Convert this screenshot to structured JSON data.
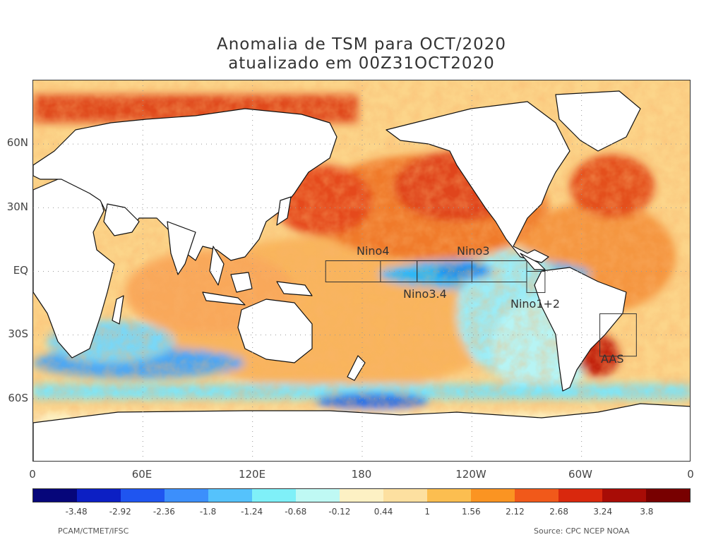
{
  "title": {
    "line1": "Anomalia de TSM para OCT/2020",
    "line2": "atualizado em 00Z31OCT2020"
  },
  "map": {
    "type": "heatmap",
    "projection": "equirectangular",
    "lon_range": [
      0,
      360
    ],
    "lat_range": [
      -90,
      90
    ],
    "lat_labels": [
      "60N",
      "30N",
      "EQ",
      "30S",
      "60S"
    ],
    "lon_labels": [
      "0",
      "60E",
      "120E",
      "180",
      "120W",
      "60W",
      "0"
    ],
    "regions": [
      {
        "name": "Nino4",
        "lon": [
          160,
          210
        ],
        "lat": [
          -5,
          5
        ]
      },
      {
        "name": "Nino3.4",
        "lon": [
          190,
          240
        ],
        "lat": [
          -5,
          5
        ]
      },
      {
        "name": "Nino3",
        "lon": [
          210,
          270
        ],
        "lat": [
          -5,
          5
        ]
      },
      {
        "name": "Nino1+2",
        "lon": [
          270,
          280
        ],
        "lat": [
          -10,
          0
        ]
      },
      {
        "name": "AAS",
        "lon": [
          310,
          330
        ],
        "lat": [
          -40,
          -20
        ]
      }
    ],
    "colors": {
      "land": "#ffffff",
      "neutral_ocean": "#fde9b4",
      "coast": "#111111",
      "frame": "#333333"
    }
  },
  "colorbar": {
    "labels": [
      "-3.48",
      "-2.92",
      "-2.36",
      "-1.8",
      "-1.24",
      "-0.68",
      "-0.12",
      "0.44",
      "1",
      "1.56",
      "2.12",
      "2.68",
      "3.24",
      "3.8"
    ],
    "colors": [
      "#06067a",
      "#0c1fc4",
      "#1f55f0",
      "#3c8ffc",
      "#55c2fc",
      "#7ff0f8",
      "#bff9f4",
      "#fdf1c4",
      "#fde0a0",
      "#fcbe50",
      "#fb9422",
      "#f1591a",
      "#d9280d",
      "#a80c06",
      "#780000"
    ]
  },
  "credits": {
    "left": "PCAM/CTMET/IFSC",
    "right": "Source: CPC NCEP NOAA"
  }
}
